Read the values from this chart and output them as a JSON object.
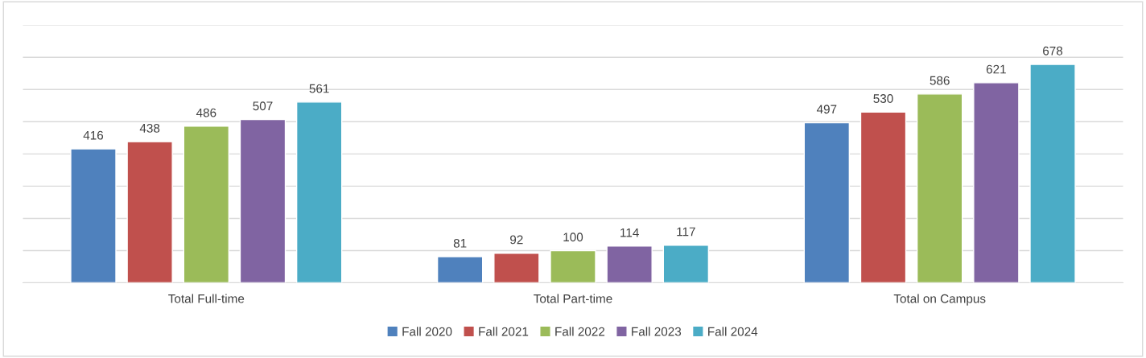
{
  "chart_data": {
    "type": "bar",
    "categories": [
      "Total Full-time",
      "Total Part-time",
      "Total on Campus"
    ],
    "series": [
      {
        "name": "Fall 2020",
        "color": "#4f81bd",
        "values": [
          416,
          81,
          497
        ]
      },
      {
        "name": "Fall 2021",
        "color": "#c0504d",
        "values": [
          438,
          92,
          530
        ]
      },
      {
        "name": "Fall 2022",
        "color": "#9bbb59",
        "values": [
          486,
          100,
          586
        ]
      },
      {
        "name": "Fall 2023",
        "color": "#8064a2",
        "values": [
          507,
          114,
          621
        ]
      },
      {
        "name": "Fall 2024",
        "color": "#4bacc6",
        "values": [
          561,
          117,
          678
        ]
      }
    ],
    "ylim": [
      0,
      800
    ],
    "yticks": [
      {
        "value": 0,
        "label": null
      },
      {
        "value": 100,
        "label": null
      },
      {
        "value": 200,
        "label": null
      },
      {
        "value": 300,
        "label": null
      },
      {
        "value": 400,
        "label": null
      },
      {
        "value": 500,
        "label": null
      },
      {
        "value": 600,
        "label": null
      },
      {
        "value": 700,
        "label": null
      },
      {
        "value": 800,
        "label": null
      }
    ],
    "tick_labels": "x",
    "grid": "y",
    "data_labels": true,
    "legend": "bottom"
  }
}
